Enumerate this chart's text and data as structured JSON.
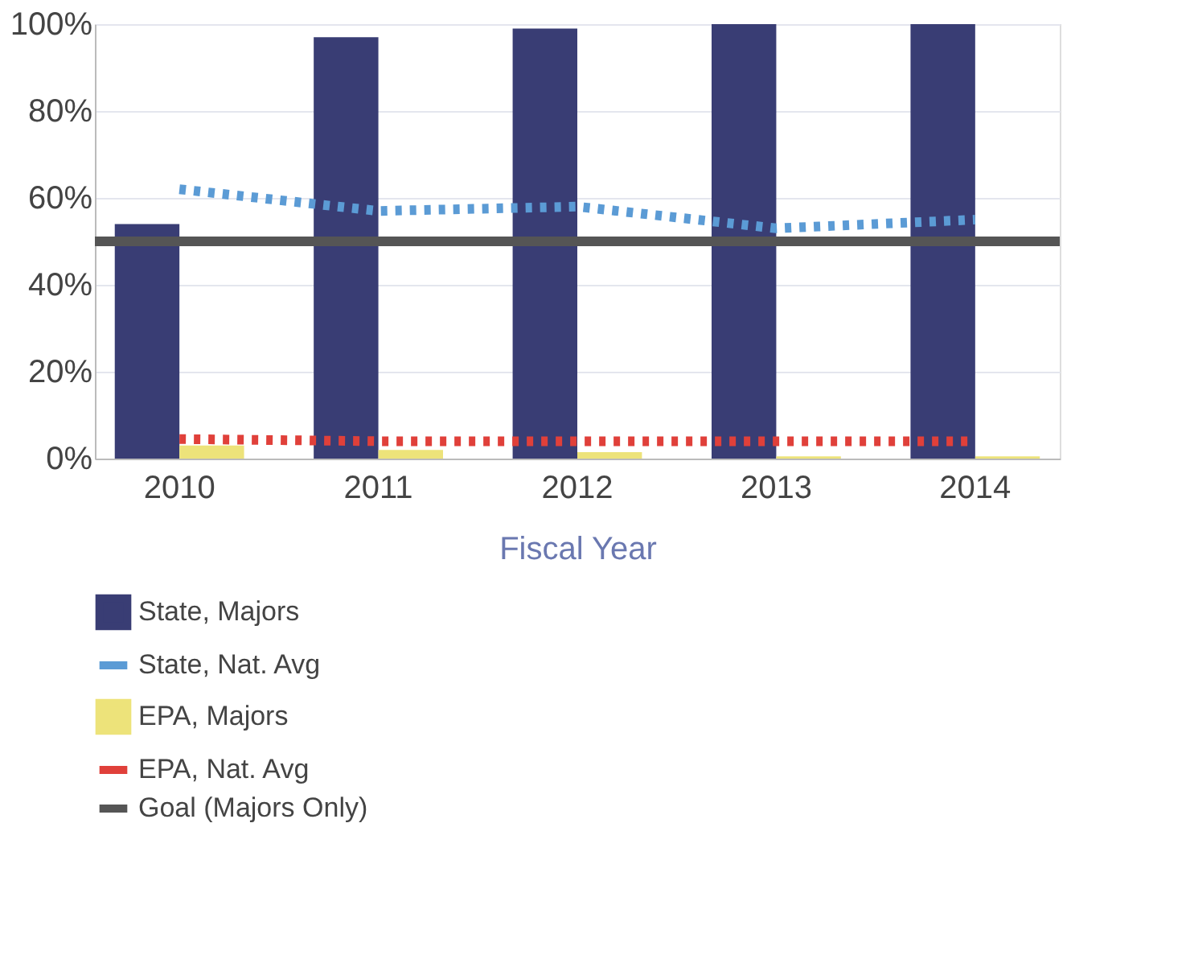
{
  "chart_data": {
    "type": "bar",
    "xlabel": "Fiscal Year",
    "categories": [
      "2010",
      "2011",
      "2012",
      "2013",
      "2014"
    ],
    "series": [
      {
        "name": "State, Majors",
        "color": "#393d74",
        "values": [
          54,
          97,
          99,
          100,
          100
        ]
      },
      {
        "name": "State, Nat. Avg",
        "type": "line",
        "line_style": "dotted",
        "color": "#5b9bd5",
        "values": [
          62,
          57,
          58,
          53,
          55
        ]
      },
      {
        "name": "EPA, Majors",
        "color": "#ede37a",
        "values": [
          3,
          2,
          1.5,
          0.5,
          0.5
        ]
      },
      {
        "name": "EPA, Nat. Avg",
        "type": "line",
        "line_style": "dotted",
        "color": "#e0403a",
        "values": [
          4.5,
          4,
          4,
          4,
          4
        ]
      }
    ],
    "ref_lines": [
      {
        "axis": "y",
        "value": 50,
        "label": "Goal (Majors Only)",
        "color": "#555555",
        "line_style": "solid"
      }
    ],
    "ylim": [
      0,
      100
    ],
    "yticks": [
      {
        "value": 0,
        "label": "0%"
      },
      {
        "value": 20,
        "label": "20%"
      },
      {
        "value": 40,
        "label": "40%"
      },
      {
        "value": 60,
        "label": "60%"
      },
      {
        "value": 80,
        "label": "80%"
      },
      {
        "value": 100,
        "label": "100%"
      }
    ],
    "grid": "y",
    "legend": "bottom"
  }
}
